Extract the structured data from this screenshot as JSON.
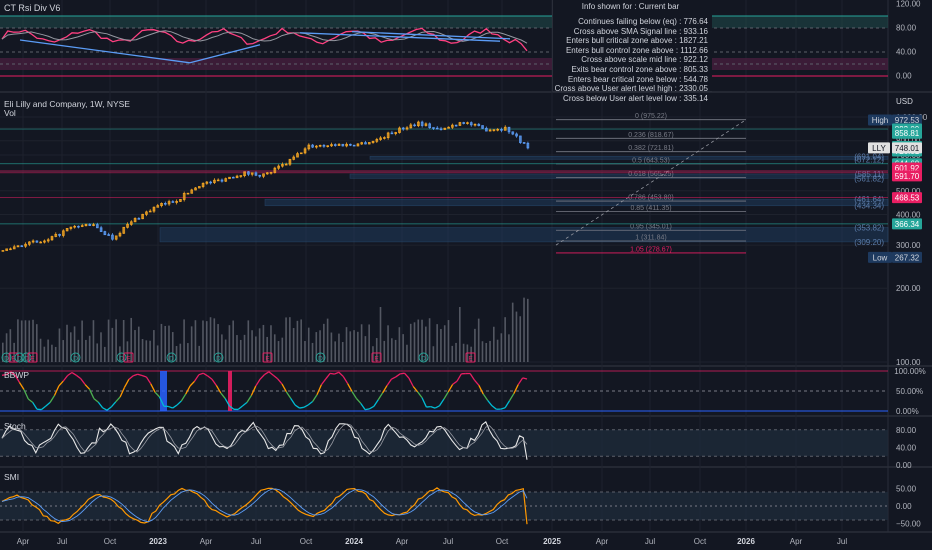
{
  "colors": {
    "background": "#131722",
    "grid": "#1e222d",
    "bull": "#f5a623",
    "bear": "#5b9cf6",
    "fib": "#787b86",
    "magenta": "#e91e63",
    "green": "#26a69a",
    "pink": "#ff4081"
  },
  "rsi_panel": {
    "title": "CT Rsi Div V6",
    "axis_labels": [
      "120.00",
      "80.00",
      "40.00",
      "0.00"
    ],
    "info": {
      "heading": "Info shown for : Current bar",
      "lines": [
        "Continues failing below (eq) : 776.64",
        "Cross above SMA Signal line : 933.16",
        "Enters bull critical zone above : 1827.21",
        "Enters bull control zone above : 1112.66",
        "Cross above scale mid line : 922.12",
        "Exits bear control zone above : 805.33",
        "Enters bear critical zone below : 544.78",
        "Cross above  User alert level high : 2330.05",
        "Cross below  User alert level low : 335.14"
      ]
    }
  },
  "main_panel": {
    "symbol": "Eli Lilly and Company, 1W, NYSE",
    "volume_label": "Vol",
    "currency": "USD",
    "ticker": "LLY",
    "axis_labels": [
      "1,000.00",
      "900.00",
      "800.00",
      "700.00",
      "600.00",
      "500.00",
      "400.00",
      "300.00",
      "200.00",
      "100.00"
    ],
    "high": {
      "label": "High",
      "value": "972.53"
    },
    "low": {
      "label": "Low",
      "value": "267.32"
    },
    "last_price": "748.01",
    "price_tags": [
      {
        "value": "893.00",
        "color": "#26a69a"
      },
      {
        "value": "858.81",
        "color": "#26a69a"
      },
      {
        "value": "758.00",
        "color": "#26a69a"
      },
      {
        "value": "726.81",
        "color": "#26a69a"
      },
      {
        "value": "644.60",
        "color": "#26a69a"
      },
      {
        "value": "601.92",
        "color": "#e91e63"
      },
      {
        "value": "591.70",
        "color": "#e91e63"
      },
      {
        "value": "468.53",
        "color": "#e91e63"
      },
      {
        "value": "366.34",
        "color": "#26a69a"
      }
    ],
    "zone_labels": [
      "(691.04)",
      "(672.12)",
      "(585.11)",
      "(561.82)",
      "(461.64)",
      "(434.34)",
      "(353.82)",
      "(309.20)"
    ],
    "fib_levels": [
      {
        "ratio": "0 (975.22)",
        "price": 975.22
      },
      {
        "ratio": "0.236 (818.67)",
        "price": 818.67
      },
      {
        "ratio": "0.382 (721.81)",
        "price": 721.81
      },
      {
        "ratio": "0.5 (643.53)",
        "price": 643.53
      },
      {
        "ratio": "0.618 (565.25)",
        "price": 565.25
      },
      {
        "ratio": "0.786 (453.80)",
        "price": 453.8
      },
      {
        "ratio": "0.85 (411.35)",
        "price": 411.35
      },
      {
        "ratio": "0.95 (345.01)",
        "price": 345.01
      },
      {
        "ratio": "1 (311.84)",
        "price": 311.84
      },
      {
        "ratio": "1.05 (278.67)",
        "price": 278.67
      }
    ],
    "event_markers": [
      "D",
      "E",
      "D",
      "D",
      "E",
      "D",
      "D",
      "E",
      "D",
      "D",
      "E",
      "D",
      "E",
      "D",
      "E"
    ]
  },
  "bbwp_panel": {
    "title": "BBWP",
    "axis_labels": [
      "100.00%",
      "50.00%",
      "0.00%"
    ]
  },
  "stoch_panel": {
    "title": "Stoch",
    "axis_labels": [
      "80.00",
      "40.00",
      "0.00"
    ]
  },
  "smi_panel": {
    "title": "SMI",
    "axis_labels": [
      "50.00",
      "0.00",
      "−50.00"
    ]
  },
  "time_axis": [
    "Apr",
    "Jul",
    "Oct",
    "2023",
    "Apr",
    "Jul",
    "Oct",
    "2024",
    "Apr",
    "Jul",
    "Oct",
    "2025",
    "Apr",
    "Jul",
    "Oct",
    "2026",
    "Apr",
    "Jul"
  ],
  "chart_data": {
    "type": "candlestick",
    "title": "Eli Lilly and Company, 1W, NYSE",
    "ylabel": "USD",
    "scale": "log",
    "ylim": [
      100,
      1000
    ],
    "x": "weekly bars, Apr 2022 – Nov 2024",
    "close_path": [
      {
        "date": "2022-04",
        "close": 285
      },
      {
        "date": "2022-06",
        "close": 305
      },
      {
        "date": "2022-08",
        "close": 310
      },
      {
        "date": "2022-10",
        "close": 350
      },
      {
        "date": "2022-12",
        "close": 365
      },
      {
        "date": "2023-02",
        "close": 320
      },
      {
        "date": "2023-04",
        "close": 380
      },
      {
        "date": "2023-05",
        "close": 430
      },
      {
        "date": "2023-06",
        "close": 460
      },
      {
        "date": "2023-08",
        "close": 530
      },
      {
        "date": "2023-09",
        "close": 555
      },
      {
        "date": "2023-11",
        "close": 590
      },
      {
        "date": "2023-12",
        "close": 580
      },
      {
        "date": "2024-01",
        "close": 650
      },
      {
        "date": "2024-02",
        "close": 760
      },
      {
        "date": "2024-03",
        "close": 770
      },
      {
        "date": "2024-04",
        "close": 770
      },
      {
        "date": "2024-05",
        "close": 800
      },
      {
        "date": "2024-06",
        "close": 880
      },
      {
        "date": "2024-07",
        "close": 950
      },
      {
        "date": "2024-08",
        "close": 880
      },
      {
        "date": "2024-08b",
        "close": 960
      },
      {
        "date": "2024-09",
        "close": 890
      },
      {
        "date": "2024-10",
        "close": 900
      },
      {
        "date": "2024-11",
        "close": 748
      }
    ],
    "high": 972.53,
    "low": 267.32,
    "last": 748.01
  }
}
